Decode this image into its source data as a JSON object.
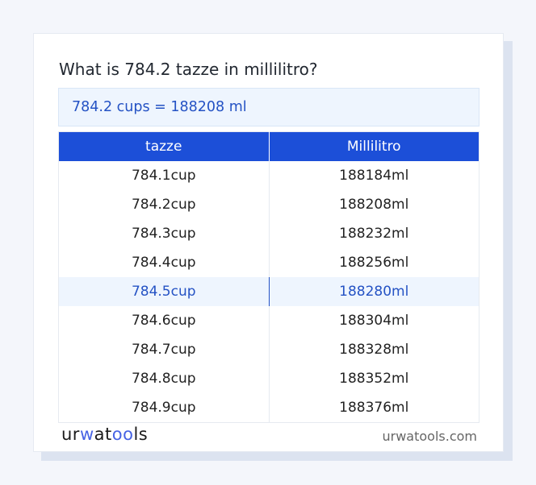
{
  "title": "What is 784.2 tazze in millilitro?",
  "result": "784.2 cups = 188208 ml",
  "table": {
    "headers": [
      "tazze",
      "Millilitro"
    ],
    "rows": [
      [
        "784.1cup",
        "188184ml"
      ],
      [
        "784.2cup",
        "188208ml"
      ],
      [
        "784.3cup",
        "188232ml"
      ],
      [
        "784.4cup",
        "188256ml"
      ],
      [
        "784.5cup",
        "188280ml"
      ],
      [
        "784.6cup",
        "188304ml"
      ],
      [
        "784.7cup",
        "188328ml"
      ],
      [
        "784.8cup",
        "188352ml"
      ],
      [
        "784.9cup",
        "188376ml"
      ]
    ],
    "highlighted_row": 4
  },
  "footer": {
    "logo": {
      "part1": "ur",
      "part2": "w",
      "part3": "at",
      "part4": "oo",
      "part5": "ls"
    },
    "site": "urwatools.com"
  },
  "colors": {
    "accent": "#1c4fd8",
    "highlight_text": "#2452c4",
    "highlight_bg": "#eef5fe"
  }
}
